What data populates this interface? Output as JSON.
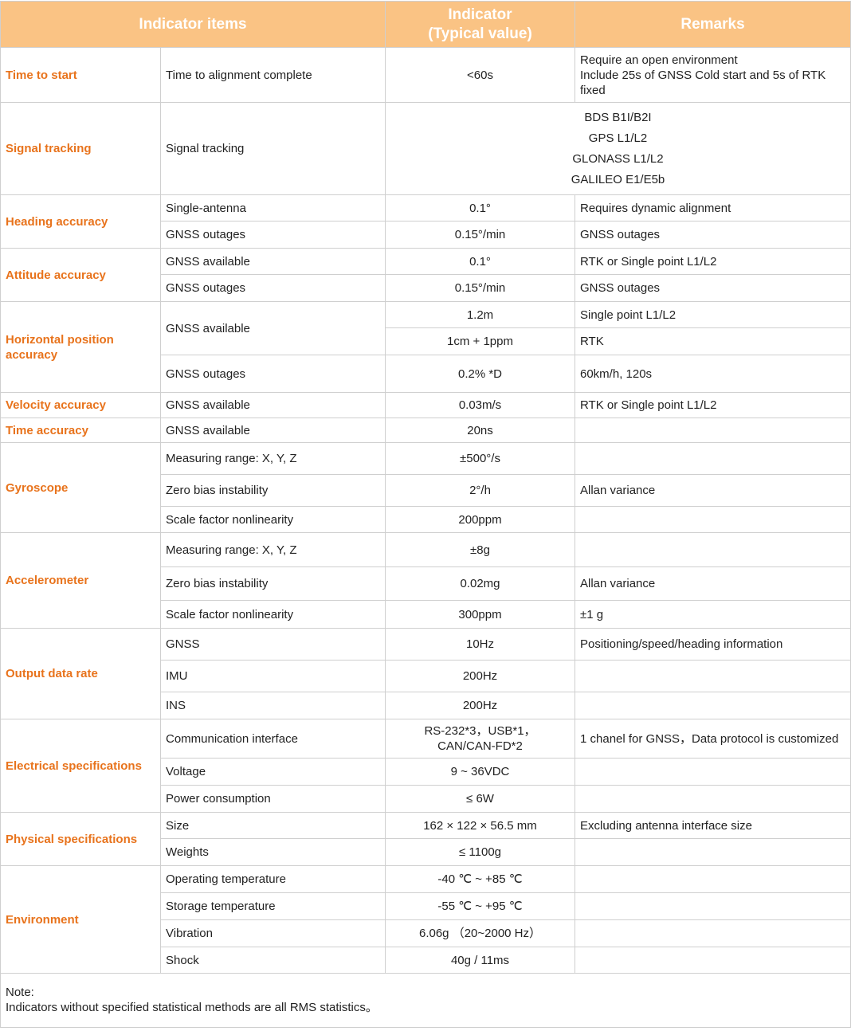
{
  "table": {
    "header": {
      "items": "Indicator items",
      "indicator": "Indicator\n(Typical value)",
      "remarks": "Remarks"
    },
    "sections": [
      {
        "name": "Time to start",
        "rows": [
          {
            "item": "Time to alignment complete",
            "value": "<60s",
            "remark": "Require an open environment\nInclude 25s of GNSS Cold start and 5s of RTK fixed"
          }
        ]
      },
      {
        "name": "Signal tracking",
        "rows": [
          {
            "item": "Signal tracking",
            "value": "BDS B1I/B2I\nGPS L1/L2\nGLONASS L1/L2\nGALILEO E1/E5b"
          }
        ]
      },
      {
        "name": "Heading accuracy",
        "rows": [
          {
            "item": "Single-antenna",
            "value": "0.1°",
            "remark": "Requires dynamic alignment"
          },
          {
            "item": "GNSS outages",
            "value": "0.15°/min",
            "remark": "GNSS outages"
          }
        ]
      },
      {
        "name": "Attitude accuracy",
        "rows": [
          {
            "item": "GNSS available",
            "value": "0.1°",
            "remark": "RTK or Single point L1/L2"
          },
          {
            "item": "GNSS outages",
            "value": "0.15°/min",
            "remark": "GNSS outages"
          }
        ]
      },
      {
        "name": "Horizontal position accuracy",
        "rows": [
          {
            "item": "GNSS available",
            "values": [
              "1.2m",
              "1cm + 1ppm"
            ],
            "remarks": [
              "Single point L1/L2",
              "RTK"
            ]
          },
          {
            "item": "GNSS outages",
            "value": "0.2% *D",
            "remark": "60km/h, 120s"
          }
        ]
      },
      {
        "name": "Velocity accuracy",
        "rows": [
          {
            "item": "GNSS available",
            "value": "0.03m/s",
            "remark": "RTK or Single point L1/L2"
          }
        ]
      },
      {
        "name": "Time accuracy",
        "rows": [
          {
            "item": "GNSS available",
            "value": "20ns"
          }
        ]
      },
      {
        "name": "Gyroscope",
        "rows": [
          {
            "item": "Measuring range: X, Y, Z",
            "value": "±500°/s"
          },
          {
            "item": "Zero bias instability",
            "value": "2°/h",
            "remark": "Allan variance"
          },
          {
            "item": "Scale factor nonlinearity",
            "value": "200ppm"
          }
        ]
      },
      {
        "name": "Accelerometer",
        "rows": [
          {
            "item": "Measuring range: X, Y, Z",
            "value": "±8g"
          },
          {
            "item": "Zero bias instability",
            "value": "0.02mg",
            "remark": "Allan variance"
          },
          {
            "item": "Scale factor nonlinearity",
            "value": "300ppm",
            "remark": "±1 g"
          }
        ]
      },
      {
        "name": "Output data rate",
        "rows": [
          {
            "item": "GNSS",
            "value": "10Hz",
            "remark": "Positioning/speed/heading information"
          },
          {
            "item": "IMU",
            "value": "200Hz"
          },
          {
            "item": "INS",
            "value": "200Hz"
          }
        ]
      },
      {
        "name": "Electrical specifications",
        "rows": [
          {
            "item": "Communication interface",
            "value": "RS-232*3，USB*1，\nCAN/CAN-FD*2",
            "remark": "1 chanel for GNSS，Data protocol is customized"
          },
          {
            "item": "Voltage",
            "value": "9 ~ 36VDC"
          },
          {
            "item": "Power consumption",
            "value": "≤ 6W"
          }
        ]
      },
      {
        "name": "Physical specifications",
        "rows": [
          {
            "item": "Size",
            "value": "162 × 122 × 56.5 mm",
            "remark": "Excluding antenna interface size"
          },
          {
            "item": "Weights",
            "value": "≤ 1100g"
          }
        ]
      },
      {
        "name": "Environment",
        "rows": [
          {
            "item": "Operating temperature",
            "value": "-40 ℃ ~ +85 ℃"
          },
          {
            "item": "Storage temperature",
            "value": "-55 ℃ ~ +95 ℃"
          },
          {
            "item": "Vibration",
            "value": "6.06g （20~2000 Hz）"
          },
          {
            "item": "Shock",
            "value": "40g / 11ms"
          }
        ]
      }
    ],
    "note": [
      "Note:",
      "Indicators without specified statistical methods are all RMS statistics。"
    ]
  }
}
